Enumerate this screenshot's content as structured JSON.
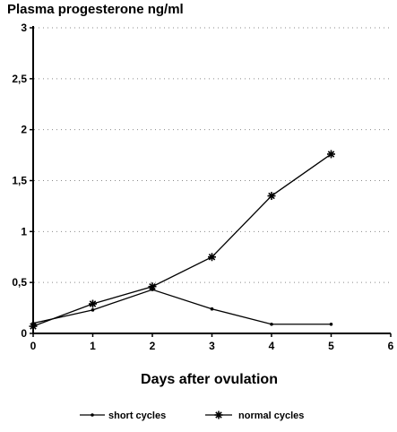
{
  "chart_data": {
    "type": "line",
    "title": "Plasma progesterone ng/ml",
    "xlabel": "Days after ovulation",
    "ylabel": "",
    "x": [
      0,
      1,
      2,
      3,
      4,
      5
    ],
    "xlim": [
      0,
      6
    ],
    "ylim": [
      0,
      3
    ],
    "x_ticks": [
      "0",
      "1",
      "2",
      "3",
      "4",
      "5",
      "6"
    ],
    "y_ticks": [
      "0",
      "0,5",
      "1",
      "1,5",
      "2",
      "2,5",
      "3"
    ],
    "y_tick_values": [
      0,
      0.5,
      1,
      1.5,
      2,
      2.5,
      3
    ],
    "grid": "horizontal dotted",
    "legend_position": "bottom",
    "series": [
      {
        "name": "short cycles",
        "marker": "dot",
        "values": [
          0.1,
          0.23,
          0.43,
          0.24,
          0.09,
          0.09
        ]
      },
      {
        "name": "normal cycles",
        "marker": "star",
        "values": [
          0.07,
          0.29,
          0.46,
          0.75,
          1.35,
          1.76
        ]
      }
    ]
  }
}
